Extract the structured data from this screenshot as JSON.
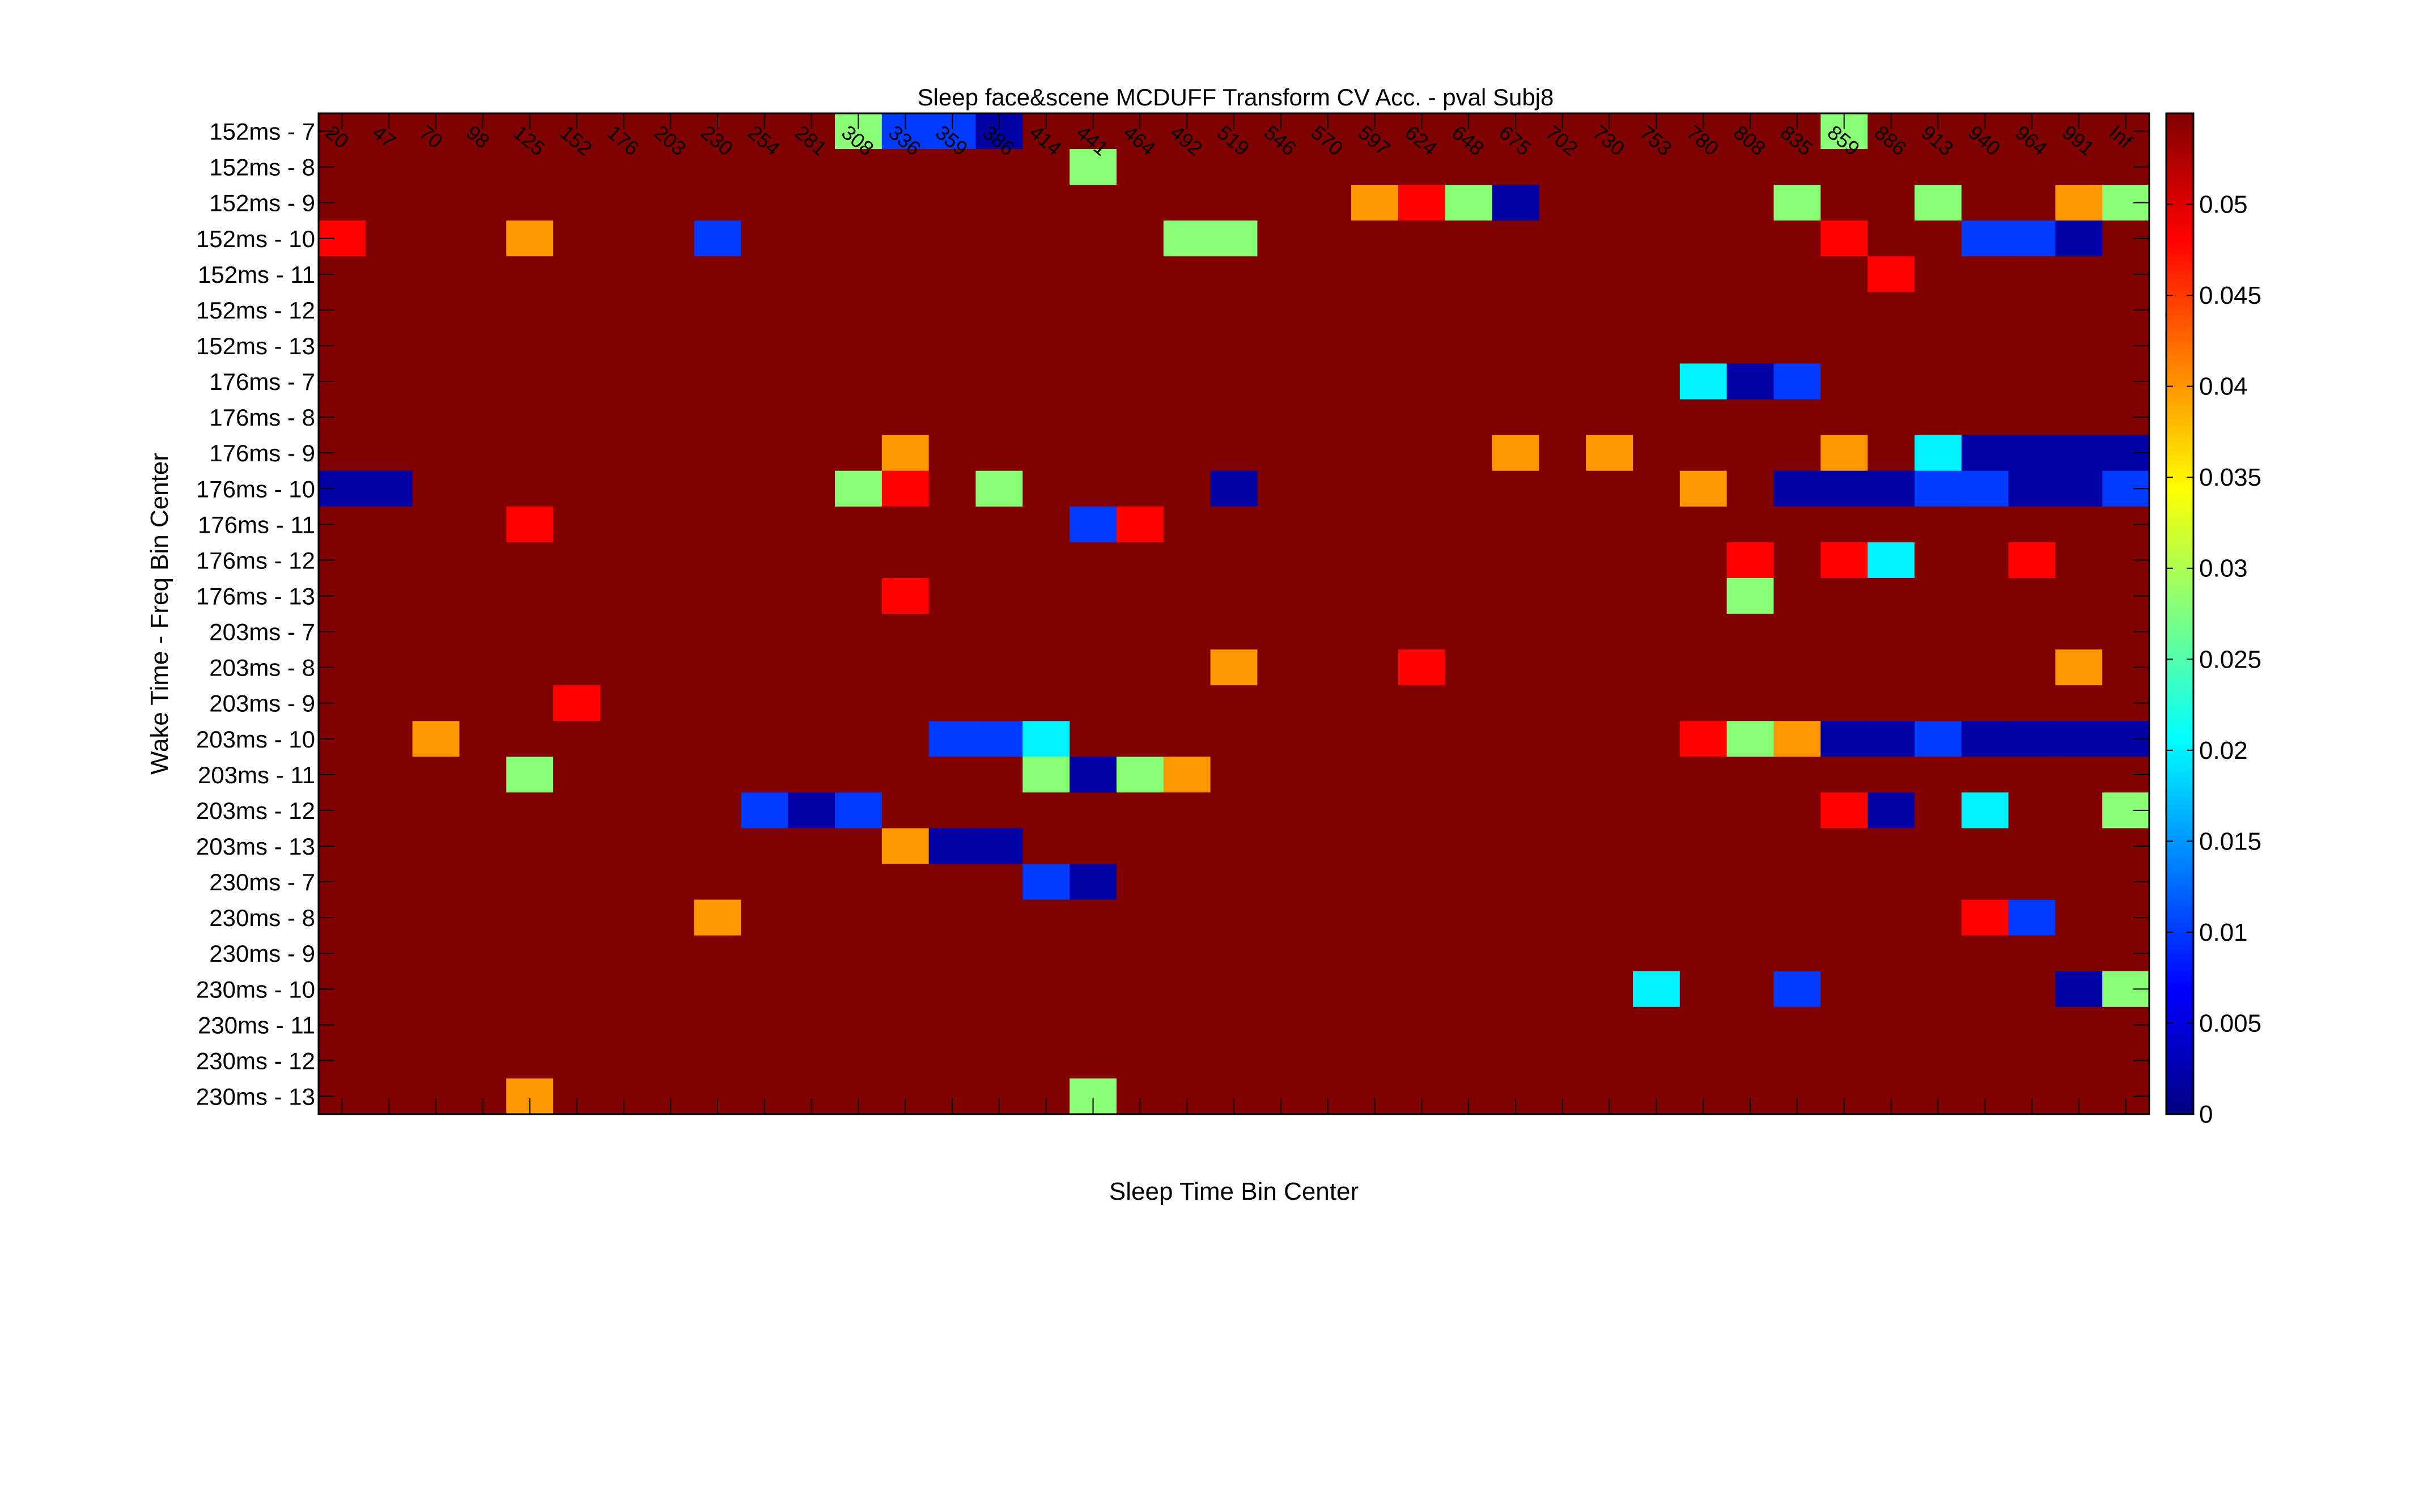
{
  "chart_data": {
    "type": "heatmap",
    "title": "Sleep face&scene MCDUFF Transform CV Acc. - pval Subj8",
    "xlabel": "Sleep Time Bin Center",
    "ylabel": "Wake Time - Freq Bin Center",
    "x_categories": [
      "20",
      "47",
      "70",
      "98",
      "125",
      "152",
      "176",
      "203",
      "230",
      "254",
      "281",
      "308",
      "336",
      "359",
      "386",
      "414",
      "441",
      "464",
      "492",
      "519",
      "546",
      "570",
      "597",
      "624",
      "648",
      "675",
      "702",
      "730",
      "753",
      "780",
      "808",
      "835",
      "859",
      "886",
      "913",
      "940",
      "964",
      "991",
      "Inf"
    ],
    "y_categories": [
      "152ms - 7",
      "152ms - 8",
      "152ms - 9",
      "152ms - 10",
      "152ms - 11",
      "152ms - 12",
      "152ms - 13",
      "176ms - 7",
      "176ms - 8",
      "176ms - 9",
      "176ms - 10",
      "176ms - 11",
      "176ms - 12",
      "176ms - 13",
      "203ms - 7",
      "203ms - 8",
      "203ms - 9",
      "203ms - 10",
      "203ms - 11",
      "203ms - 12",
      "203ms - 13",
      "230ms - 7",
      "230ms - 8",
      "230ms - 9",
      "230ms - 10",
      "230ms - 11",
      "230ms - 12",
      "230ms - 13"
    ],
    "default_value": 0.055,
    "cells": [
      [
        0,
        11,
        0.028
      ],
      [
        0,
        12,
        0.01
      ],
      [
        0,
        13,
        0.01
      ],
      [
        0,
        14,
        0.002
      ],
      [
        0,
        32,
        0.028
      ],
      [
        1,
        16,
        0.028
      ],
      [
        2,
        22,
        0.04
      ],
      [
        2,
        23,
        0.048
      ],
      [
        2,
        24,
        0.028
      ],
      [
        2,
        25,
        0.002
      ],
      [
        2,
        31,
        0.028
      ],
      [
        2,
        34,
        0.028
      ],
      [
        2,
        37,
        0.04
      ],
      [
        2,
        38,
        0.028
      ],
      [
        3,
        0,
        0.048
      ],
      [
        3,
        4,
        0.04
      ],
      [
        3,
        8,
        0.01
      ],
      [
        3,
        18,
        0.028
      ],
      [
        3,
        19,
        0.028
      ],
      [
        3,
        32,
        0.048
      ],
      [
        3,
        35,
        0.01
      ],
      [
        3,
        36,
        0.01
      ],
      [
        3,
        37,
        0.002
      ],
      [
        4,
        33,
        0.048
      ],
      [
        7,
        29,
        0.02
      ],
      [
        7,
        30,
        0.002
      ],
      [
        7,
        31,
        0.01
      ],
      [
        9,
        12,
        0.04
      ],
      [
        9,
        25,
        0.04
      ],
      [
        9,
        27,
        0.04
      ],
      [
        9,
        32,
        0.04
      ],
      [
        9,
        34,
        0.02
      ],
      [
        9,
        35,
        0.002
      ],
      [
        9,
        36,
        0.002
      ],
      [
        9,
        37,
        0.002
      ],
      [
        9,
        38,
        0.002
      ],
      [
        10,
        0,
        0.002
      ],
      [
        10,
        1,
        0.002
      ],
      [
        10,
        11,
        0.028
      ],
      [
        10,
        12,
        0.048
      ],
      [
        10,
        14,
        0.028
      ],
      [
        10,
        19,
        0.002
      ],
      [
        10,
        29,
        0.04
      ],
      [
        10,
        31,
        0.002
      ],
      [
        10,
        32,
        0.002
      ],
      [
        10,
        33,
        0.002
      ],
      [
        10,
        34,
        0.01
      ],
      [
        10,
        35,
        0.01
      ],
      [
        10,
        36,
        0.002
      ],
      [
        10,
        37,
        0.002
      ],
      [
        10,
        38,
        0.01
      ],
      [
        11,
        4,
        0.048
      ],
      [
        11,
        16,
        0.01
      ],
      [
        11,
        17,
        0.048
      ],
      [
        12,
        30,
        0.048
      ],
      [
        12,
        32,
        0.048
      ],
      [
        12,
        33,
        0.02
      ],
      [
        12,
        36,
        0.048
      ],
      [
        13,
        12,
        0.048
      ],
      [
        13,
        30,
        0.028
      ],
      [
        15,
        19,
        0.04
      ],
      [
        15,
        23,
        0.048
      ],
      [
        15,
        37,
        0.04
      ],
      [
        16,
        5,
        0.048
      ],
      [
        17,
        2,
        0.04
      ],
      [
        17,
        13,
        0.01
      ],
      [
        17,
        14,
        0.01
      ],
      [
        17,
        15,
        0.02
      ],
      [
        17,
        29,
        0.048
      ],
      [
        17,
        30,
        0.028
      ],
      [
        17,
        31,
        0.04
      ],
      [
        17,
        32,
        0.002
      ],
      [
        17,
        33,
        0.002
      ],
      [
        17,
        34,
        0.01
      ],
      [
        17,
        35,
        0.002
      ],
      [
        17,
        36,
        0.002
      ],
      [
        17,
        37,
        0.002
      ],
      [
        17,
        38,
        0.002
      ],
      [
        18,
        4,
        0.028
      ],
      [
        18,
        15,
        0.028
      ],
      [
        18,
        16,
        0.002
      ],
      [
        18,
        17,
        0.028
      ],
      [
        18,
        18,
        0.04
      ],
      [
        19,
        9,
        0.01
      ],
      [
        19,
        10,
        0.002
      ],
      [
        19,
        11,
        0.01
      ],
      [
        19,
        32,
        0.048
      ],
      [
        19,
        33,
        0.002
      ],
      [
        19,
        35,
        0.02
      ],
      [
        19,
        38,
        0.028
      ],
      [
        20,
        12,
        0.04
      ],
      [
        20,
        13,
        0.002
      ],
      [
        20,
        14,
        0.002
      ],
      [
        21,
        15,
        0.01
      ],
      [
        21,
        16,
        0.002
      ],
      [
        22,
        8,
        0.04
      ],
      [
        22,
        35,
        0.048
      ],
      [
        22,
        36,
        0.01
      ],
      [
        24,
        28,
        0.02
      ],
      [
        24,
        31,
        0.01
      ],
      [
        24,
        37,
        0.002
      ],
      [
        24,
        38,
        0.028
      ],
      [
        27,
        4,
        0.04
      ],
      [
        27,
        16,
        0.028
      ]
    ],
    "colorbar": {
      "colormap": "jet",
      "range": [
        0,
        0.055
      ],
      "ticks": [
        "0",
        "0.005",
        "0.01",
        "0.015",
        "0.02",
        "0.025",
        "0.03",
        "0.035",
        "0.04",
        "0.045",
        "0.05"
      ]
    }
  }
}
